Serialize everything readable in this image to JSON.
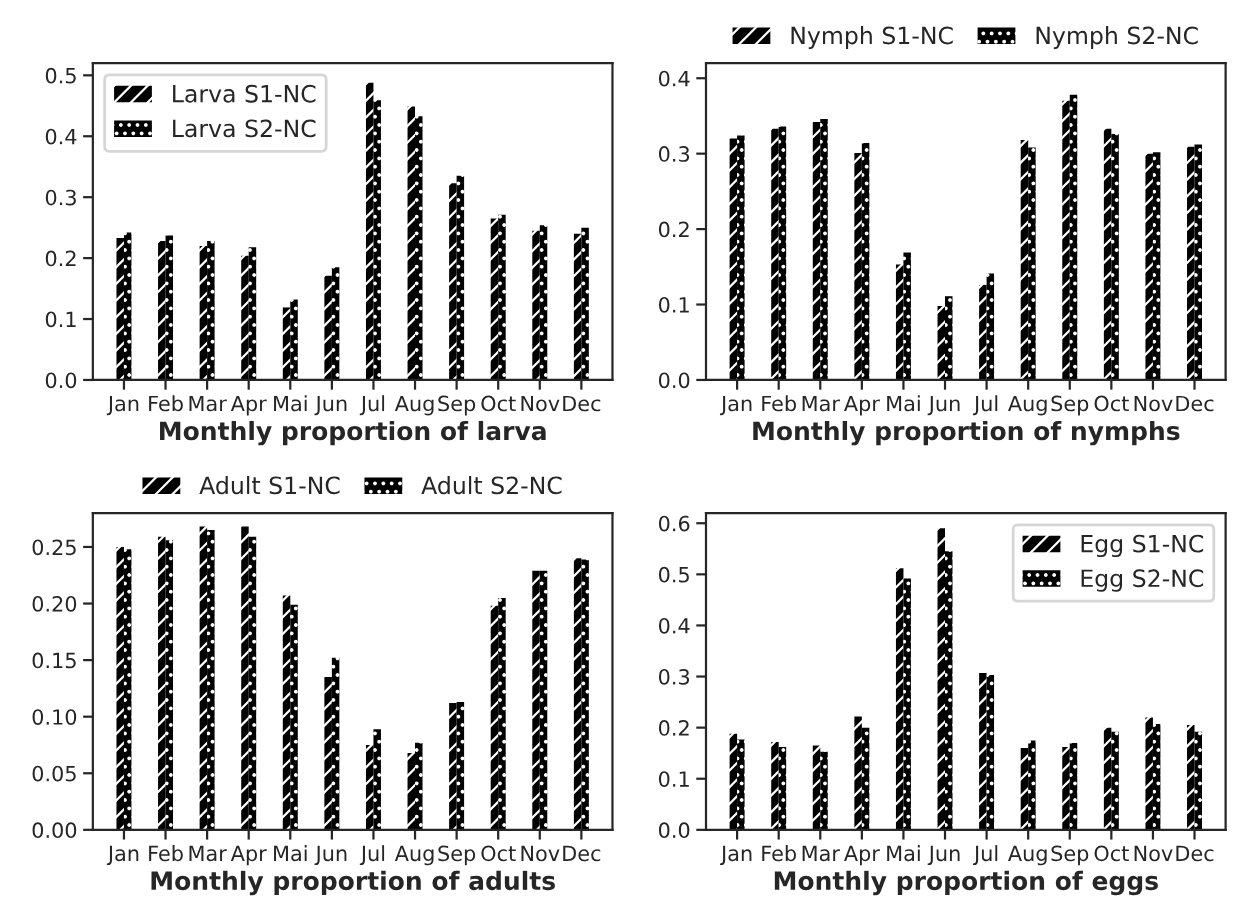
{
  "chart_data": [
    {
      "type": "bar",
      "xlabel": "Monthly proportion of larva",
      "categories": [
        "Jan",
        "Feb",
        "Mar",
        "Apr",
        "Mai",
        "Jun",
        "Jul",
        "Aug",
        "Sep",
        "Oct",
        "Nov",
        "Dec"
      ],
      "series": [
        {
          "name": "Larva S1-NC",
          "color": "#000000",
          "values": [
            0.233,
            0.228,
            0.22,
            0.204,
            0.119,
            0.171,
            0.488,
            0.449,
            0.323,
            0.265,
            0.245,
            0.24
          ]
        },
        {
          "name": "Larva S2-NC",
          "color": "#000000",
          "values": [
            0.242,
            0.237,
            0.228,
            0.218,
            0.132,
            0.185,
            0.459,
            0.433,
            0.335,
            0.271,
            0.254,
            0.25
          ]
        }
      ],
      "ylim": [
        0,
        0.52
      ],
      "yticks": [
        {
          "value": 0,
          "label": "0.0"
        },
        0.1,
        0.2,
        0.3,
        0.4,
        0.5
      ],
      "legend": "top left"
    },
    {
      "type": "bar",
      "xlabel": "Monthly proportion of nymphs",
      "categories": [
        "Jan",
        "Feb",
        "Mar",
        "Apr",
        "Mai",
        "Jun",
        "Jul",
        "Aug",
        "Sep",
        "Oct",
        "Nov",
        "Dec"
      ],
      "series": [
        {
          "name": "Nymph S1-NC",
          "color": "#000000",
          "values": [
            0.32,
            0.333,
            0.342,
            0.301,
            0.153,
            0.098,
            0.126,
            0.318,
            0.37,
            0.333,
            0.3,
            0.309
          ]
        },
        {
          "name": "Nymph S2-NC",
          "color": "#000000",
          "values": [
            0.324,
            0.336,
            0.346,
            0.314,
            0.169,
            0.111,
            0.141,
            0.308,
            0.378,
            0.326,
            0.302,
            0.312
          ]
        }
      ],
      "ylim": [
        0,
        0.42
      ],
      "yticks": [
        {
          "value": 0,
          "label": "0.0"
        },
        0.1,
        0.2,
        0.3,
        0.4
      ],
      "legend": "top"
    },
    {
      "type": "bar",
      "xlabel": "Monthly proportion of adults",
      "categories": [
        "Jan",
        "Feb",
        "Mar",
        "Apr",
        "Mai",
        "Jun",
        "Jul",
        "Aug",
        "Sep",
        "Oct",
        "Nov",
        "Dec"
      ],
      "series": [
        {
          "name": "Adult S1-NC",
          "color": "#000000",
          "values": [
            0.25,
            0.259,
            0.268,
            0.268,
            0.207,
            0.135,
            0.075,
            0.068,
            0.112,
            0.198,
            0.229,
            0.24
          ]
        },
        {
          "name": "Adult S2-NC",
          "color": "#000000",
          "values": [
            0.248,
            0.256,
            0.265,
            0.259,
            0.199,
            0.152,
            0.089,
            0.077,
            0.113,
            0.205,
            0.229,
            0.239
          ]
        }
      ],
      "ylim": [
        0,
        0.28
      ],
      "yticks": [
        {
          "value": 0,
          "label": "0.00"
        },
        {
          "value": 0.05,
          "label": "0.05"
        },
        {
          "value": 0.1,
          "label": "0.10"
        },
        {
          "value": 0.15,
          "label": "0.15"
        },
        {
          "value": 0.2,
          "label": "0.20"
        },
        {
          "value": 0.25,
          "label": "0.25"
        }
      ],
      "legend": "top"
    },
    {
      "type": "bar",
      "xlabel": "Monthly proportion of eggs",
      "categories": [
        "Jan",
        "Feb",
        "Mar",
        "Apr",
        "Mai",
        "Jun",
        "Jul",
        "Aug",
        "Sep",
        "Oct",
        "Nov",
        "Dec"
      ],
      "series": [
        {
          "name": "Egg S1-NC",
          "color": "#000000",
          "values": [
            0.188,
            0.172,
            0.165,
            0.222,
            0.512,
            0.59,
            0.307,
            0.16,
            0.162,
            0.2,
            0.22,
            0.205
          ]
        },
        {
          "name": "Egg S2-NC",
          "color": "#000000",
          "values": [
            0.177,
            0.162,
            0.153,
            0.2,
            0.492,
            0.545,
            0.303,
            0.175,
            0.17,
            0.192,
            0.207,
            0.192
          ]
        }
      ],
      "ylim": [
        0,
        0.62
      ],
      "yticks": [
        {
          "value": 0,
          "label": "0.0"
        },
        0.1,
        0.2,
        0.3,
        0.4,
        0.5,
        0.6
      ],
      "legend": "top right"
    }
  ]
}
